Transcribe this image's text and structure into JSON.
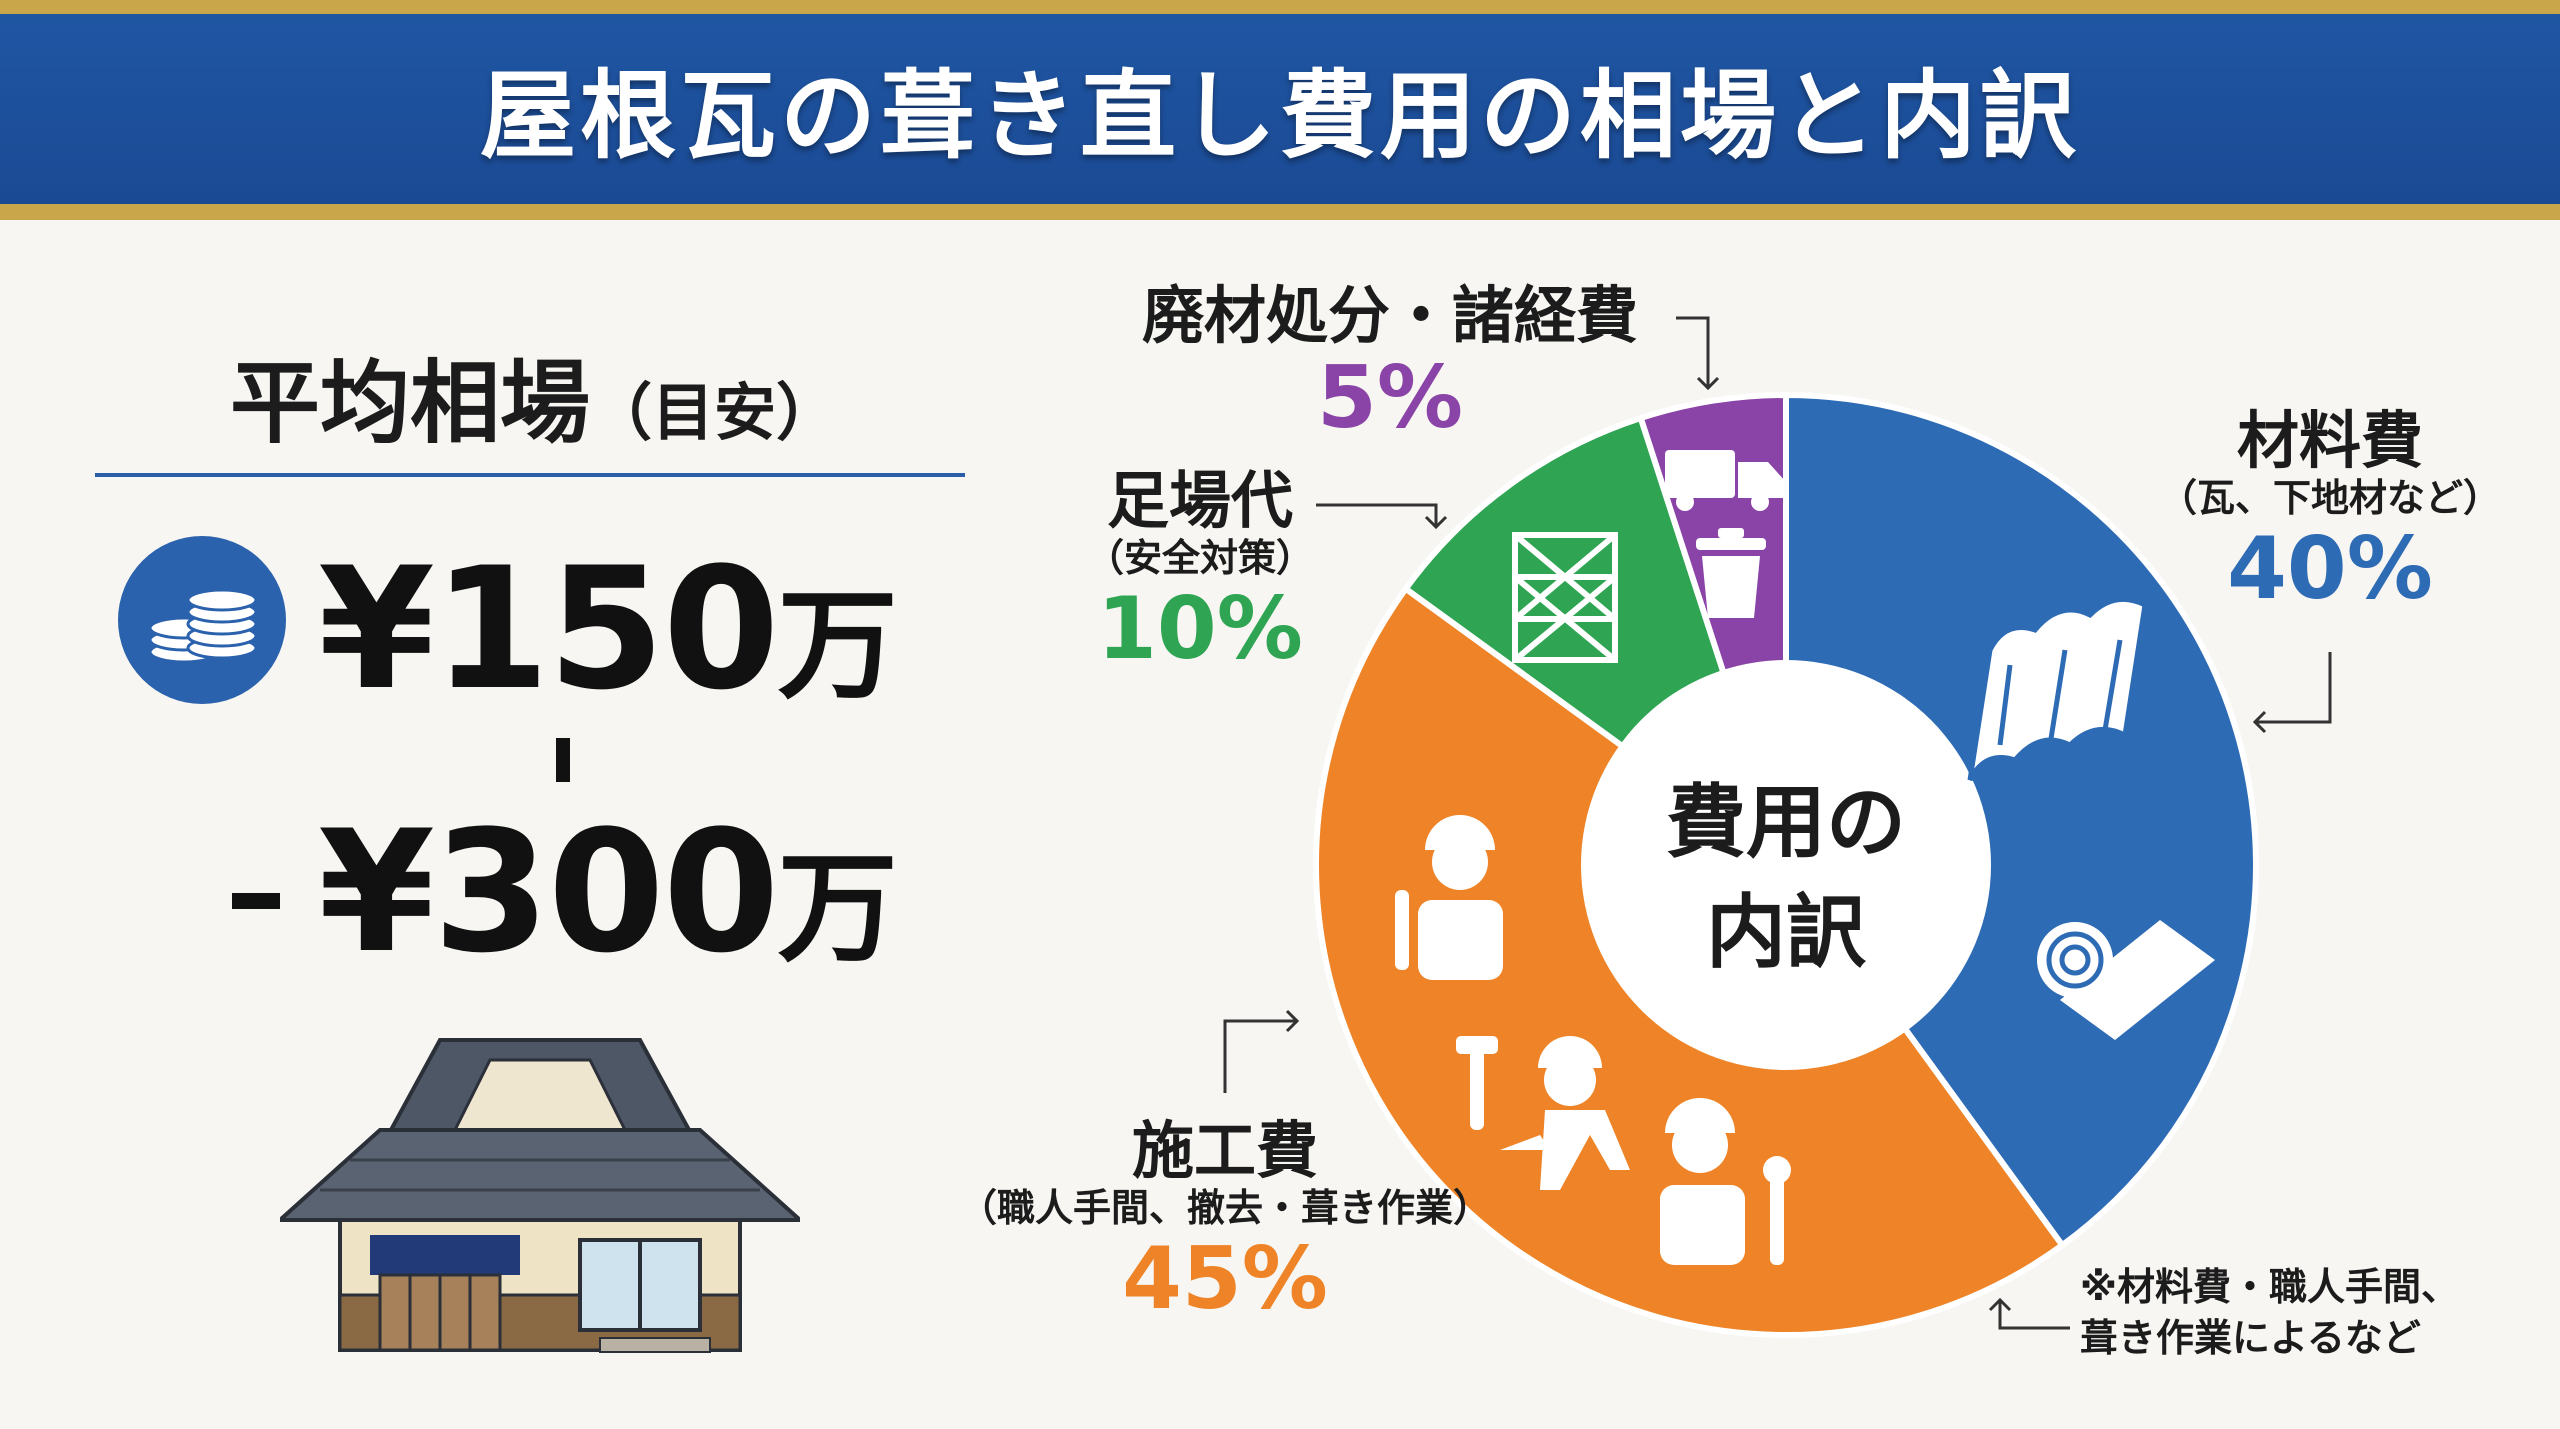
{
  "title": "屋根瓦の葺き直し費用の相場と内訳",
  "average": {
    "heading": "平均相場",
    "heading_note": "（目安）",
    "price_low": "¥150",
    "price_high": "¥300",
    "unit": "万"
  },
  "chart_data": {
    "type": "pie",
    "center_label_line1": "費用の",
    "center_label_line2": "内訳",
    "slices": [
      {
        "name": "材料費",
        "sub": "（瓦、下地材など）",
        "value": 40,
        "label": "40%",
        "color": "#2e6bb5"
      },
      {
        "name": "施工費",
        "sub": "（職人手間、撤去・葺き作業）",
        "value": 45,
        "label": "45%",
        "color": "#ee8427"
      },
      {
        "name": "足場代",
        "sub": "（安全対策）",
        "value": 10,
        "label": "10%",
        "color": "#2fa553"
      },
      {
        "name": "廃材処分・諸経費",
        "sub": "",
        "value": 5,
        "label": "5%",
        "color": "#8a43a6"
      }
    ]
  },
  "note": {
    "line1": "※材料費・職人手間、",
    "line2": "葺き作業によるなど"
  },
  "icons": [
    "coins-icon",
    "tiles-icon",
    "roll-icon",
    "workers-icon",
    "scaffold-icon",
    "truck-icon",
    "trash-icon",
    "house-illustration"
  ]
}
